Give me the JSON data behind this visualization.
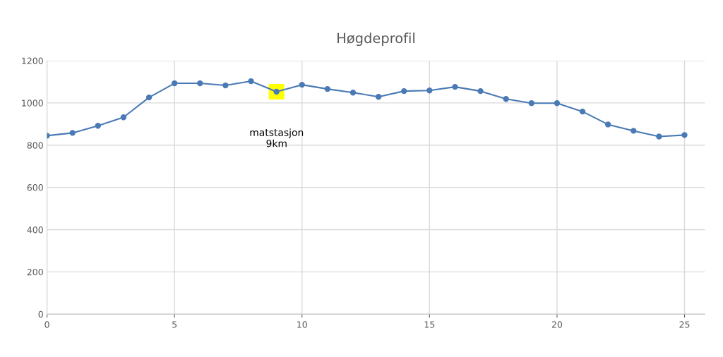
{
  "chart_data": {
    "type": "line",
    "title": "Høgdeprofil",
    "x": [
      0,
      1,
      2,
      3,
      4,
      5,
      6,
      7,
      8,
      9,
      10,
      11,
      12,
      13,
      14,
      15,
      16,
      17,
      18,
      19,
      20,
      21,
      22,
      23,
      24,
      25
    ],
    "series": [
      {
        "color": "#4a7ab5",
        "marker": "circle",
        "values": [
          845,
          858,
          892,
          932,
          1026,
          1093,
          1093,
          1083,
          1103,
          1053,
          1086,
          1066,
          1049,
          1029,
          1056,
          1059,
          1076,
          1056,
          1019,
          999,
          999,
          959,
          898,
          868,
          841,
          848
        ]
      },
      {
        "type": "scatter",
        "color": "#ffff00",
        "marker": "square",
        "x": [
          9
        ],
        "values": [
          1053
        ]
      }
    ],
    "xlim": [
      0,
      25.8
    ],
    "xticks": [
      0,
      5,
      10,
      15,
      20,
      25
    ],
    "ylim": [
      0,
      1200
    ],
    "yticks": [
      0,
      200,
      400,
      600,
      800,
      1000,
      1200
    ],
    "grid": true,
    "legend": false,
    "annotations": [
      "matstasjon\n9km"
    ]
  }
}
